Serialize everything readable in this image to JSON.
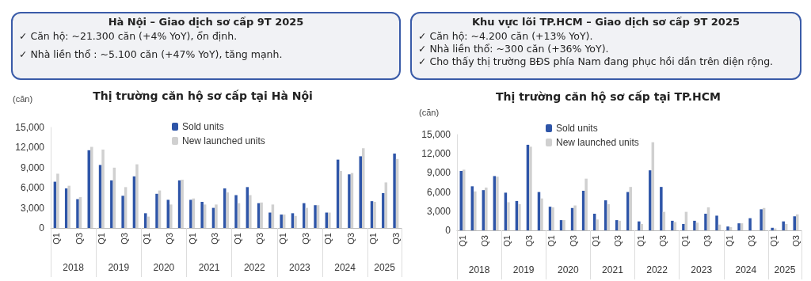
{
  "chart_data": [
    {
      "type": "other",
      "title": "Hà Nội – Giao dịch sơ cấp 9T 2025",
      "annotations": [
        "✓  Căn hộ: ~21.300 căn (+4% YoY), ổn định.",
        "✓  Nhà liền thổ : ~5.100 căn (+47% YoY), tăng mạnh."
      ]
    },
    {
      "type": "other",
      "title": "Khu vực lõi TP.HCM – Giao dịch sơ cấp 9T 2025",
      "annotations": [
        "✓  Căn hộ: ~4.200 căn (+13% YoY).",
        "✓  Nhà liền thổ: ~300 căn (+36% YoY).",
        "✓  Cho thấy thị trường BĐS phía Nam đang phục hồi dần trên diện rộng."
      ]
    },
    {
      "type": "bar",
      "title": "Thị trường căn hộ sơ cấp tại Hà Nội",
      "ylabel": "(căn)",
      "legend": "top",
      "grid": false,
      "categories": [
        "Q1",
        null,
        "Q3",
        null,
        "Q1",
        null,
        "Q3",
        null,
        "Q1",
        null,
        "Q3",
        null,
        "Q1",
        null,
        "Q3",
        null,
        "Q1",
        null,
        "Q3",
        null,
        "Q1",
        null,
        "Q3",
        null,
        "Q1",
        null,
        "Q3",
        null,
        "Q1",
        null,
        "Q3"
      ],
      "annotations": [
        "2018",
        "2019",
        "2020",
        "2021",
        "2022",
        "2023",
        "2024",
        "2025"
      ],
      "ylim": [
        0,
        15000
      ],
      "yticks": [
        0,
        {
          "value": 3000,
          "label": "3,000"
        },
        {
          "value": 6000,
          "label": "6,000"
        },
        {
          "value": 9000,
          "label": "9,000"
        },
        {
          "value": 12000,
          "label": "12,000"
        },
        {
          "value": 15000,
          "label": "15,000"
        }
      ],
      "series": [
        {
          "name": "Sold units",
          "color": "#2e55a8",
          "values": [
            6900,
            5900,
            4300,
            11600,
            9400,
            7100,
            4800,
            7700,
            2200,
            5100,
            4200,
            7100,
            4200,
            3900,
            3000,
            5900,
            4900,
            6100,
            3700,
            2300,
            2000,
            2200,
            3700,
            3400,
            2300,
            10200,
            8000,
            10700,
            4000,
            5200,
            11100
          ]
        },
        {
          "name": "New launched units",
          "color": "#d0d0d0",
          "values": [
            8100,
            6300,
            4600,
            12100,
            11700,
            9000,
            6100,
            9500,
            1700,
            5600,
            3500,
            7200,
            4400,
            3500,
            3500,
            5300,
            3700,
            4900,
            3800,
            3500,
            2000,
            1800,
            3000,
            3400,
            2300,
            8500,
            8200,
            11900,
            3900,
            6800,
            10300
          ]
        }
      ]
    },
    {
      "type": "bar",
      "title": "Thị trường căn hộ sơ cấp tại TP.HCM",
      "ylabel": "(căn)",
      "legend": "top",
      "grid": false,
      "categories": [
        "Q1",
        null,
        "Q3",
        null,
        "Q1",
        null,
        "Q3",
        null,
        "Q1",
        null,
        "Q3",
        null,
        "Q1",
        null,
        "Q3",
        null,
        "Q1",
        null,
        "Q3",
        null,
        "Q1",
        null,
        "Q3",
        null,
        "Q1",
        null,
        "Q3",
        null,
        "Q1",
        null,
        "Q3"
      ],
      "annotations": [
        "2018",
        "2019",
        "2020",
        "2021",
        "2022",
        "2023",
        "2024",
        "2025"
      ],
      "ylim": [
        0,
        15000
      ],
      "yticks": [
        0,
        {
          "value": 3000,
          "label": "3,000"
        },
        {
          "value": 6000,
          "label": "6,000"
        },
        {
          "value": 9000,
          "label": "9,000"
        },
        {
          "value": 12000,
          "label": "12,000"
        },
        {
          "value": 15000,
          "label": "15,000"
        }
      ],
      "series": [
        {
          "name": "Sold units",
          "color": "#2e55a8",
          "values": [
            9300,
            6900,
            6300,
            8500,
            5900,
            4600,
            13400,
            6000,
            3700,
            1600,
            3500,
            6200,
            2600,
            4700,
            1600,
            6000,
            1400,
            9400,
            6800,
            1500,
            1000,
            1500,
            2600,
            2300,
            600,
            1100,
            1900,
            3300,
            400,
            1400,
            2200
          ]
        },
        {
          "name": "New launched units",
          "color": "#d0d0d0",
          "values": [
            9500,
            6100,
            6700,
            8400,
            4400,
            4100,
            13100,
            5000,
            3600,
            1600,
            3900,
            8100,
            1700,
            4100,
            1500,
            6800,
            1000,
            13800,
            2900,
            1300,
            2900,
            1200,
            3600,
            900,
            500,
            1100,
            null,
            3500,
            300,
            1000,
            2500
          ]
        }
      ]
    }
  ]
}
